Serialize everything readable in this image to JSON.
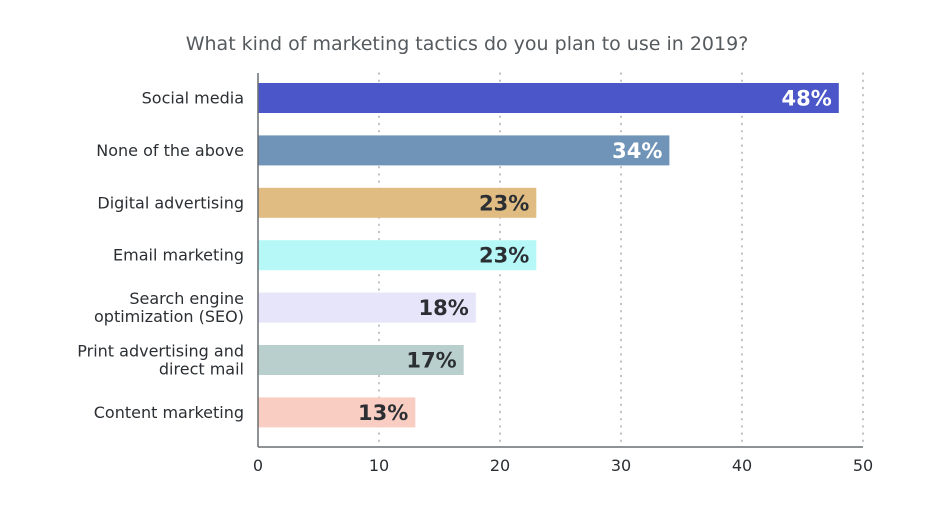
{
  "chart_data": {
    "type": "bar",
    "orientation": "horizontal",
    "title": "What kind of marketing tactics do you plan to use in 2019?",
    "xlabel": "",
    "ylabel": "",
    "categories": [
      [
        "Social media"
      ],
      [
        "None of the above"
      ],
      [
        "Digital advertising"
      ],
      [
        "Email marketing"
      ],
      [
        "Search engine",
        "optimization (SEO)"
      ],
      [
        "Print advertising and",
        "direct mail"
      ],
      [
        "Content marketing"
      ]
    ],
    "values": [
      48,
      34,
      23,
      23,
      18,
      17,
      13
    ],
    "value_labels": [
      "48%",
      "34%",
      "23%",
      "23%",
      "18%",
      "17%",
      "13%"
    ],
    "bar_colors": [
      "#4b57c8",
      "#6f94b8",
      "#e0bb82",
      "#b6f8f7",
      "#e6e5f9",
      "#b9cfcd",
      "#f9cdc2"
    ],
    "label_colors": [
      "#ffffff",
      "#ffffff",
      "#2b2f33",
      "#2b2f33",
      "#2b2f33",
      "#2b2f33",
      "#2b2f33"
    ],
    "xlim": [
      0,
      50
    ],
    "xticks": [
      0,
      10,
      20,
      30,
      40,
      50
    ],
    "grid": "vertical-dotted",
    "legend": "none"
  }
}
